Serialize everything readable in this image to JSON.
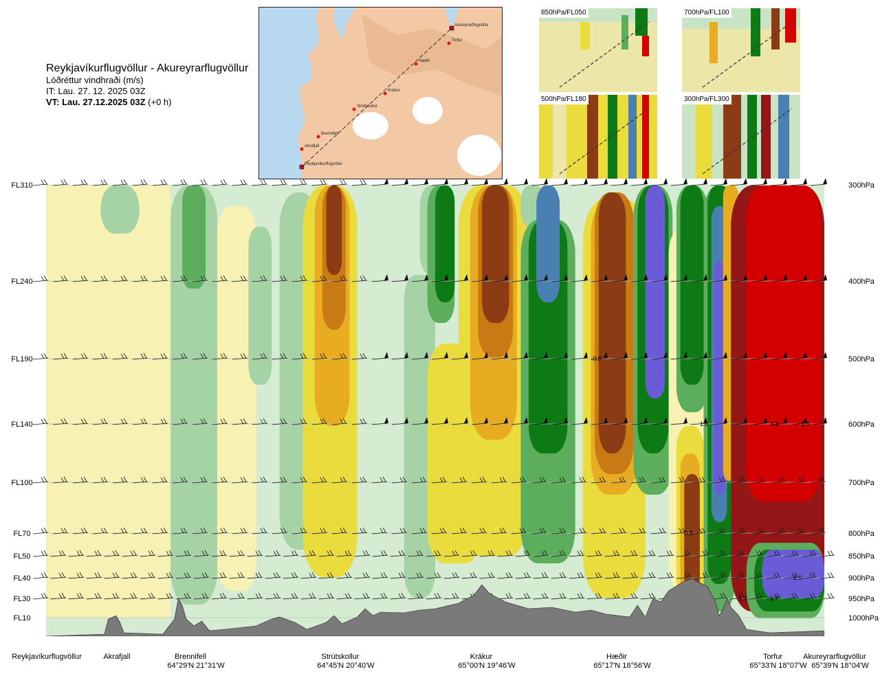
{
  "title": {
    "route": "Reykjavíkurflugvöllur - Akureyrarflugvöllur",
    "variable": "Lóðréttur vindhraði (m/s)",
    "it": "IT: Lau. 27. 12. 2025 03Z",
    "vt_bold": "VT: Lau. 27.12.2025 03Z",
    "vt_rest": " (+0 h)"
  },
  "map_inset": {
    "waypoints": [
      "Akureyrarflugvöllur",
      "Torfur",
      "Hæðir",
      "Krákur",
      "Strútskollur",
      "Brennifell",
      "Akrafjall",
      "Reykjavíkurflugvöllur"
    ]
  },
  "mini_maps": [
    {
      "label": "850hPa/FL050"
    },
    {
      "label": "700hPa/FL100"
    },
    {
      "label": "500hPa/FL180"
    },
    {
      "label": "300hPa/FL300"
    }
  ],
  "chart_data": {
    "type": "heatmap",
    "title": "Lóðréttur vindhraði (m/s)",
    "flight_levels": [
      {
        "fl": "FL310",
        "pressure": "300hPa",
        "hpa": 300
      },
      {
        "fl": "FL240",
        "pressure": "400hPa",
        "hpa": 400
      },
      {
        "fl": "FL190",
        "pressure": "500hPa",
        "hpa": 500
      },
      {
        "fl": "FL140",
        "pressure": "600hPa",
        "hpa": 600
      },
      {
        "fl": "FL100",
        "pressure": "700hPa",
        "hpa": 700
      },
      {
        "fl": "FL70",
        "pressure": "800hPa",
        "hpa": 800
      },
      {
        "fl": "FL50",
        "pressure": "850hPa",
        "hpa": 850
      },
      {
        "fl": "FL40",
        "pressure": "900hPa",
        "hpa": 900
      },
      {
        "fl": "FL30",
        "pressure": "950hPa",
        "hpa": 950
      },
      {
        "fl": "FL10",
        "pressure": "1000hPa",
        "hpa": 1000
      }
    ],
    "stations": [
      {
        "name": "Reykjavíkurflugvöllur",
        "coord": "",
        "dist": 0.0
      },
      {
        "name": "Akrafjall",
        "coord": "",
        "dist": 0.1
      },
      {
        "name": "Brennifell",
        "coord": "64°29'N 21°31'W",
        "dist": 0.19
      },
      {
        "name": "Strútskollur",
        "coord": "64°45'N 20°40'W",
        "dist": 0.38
      },
      {
        "name": "Krákur",
        "coord": "65°00'N 19°46'W",
        "dist": 0.56
      },
      {
        "name": "Hæðir",
        "coord": "65°17'N 18°56'W",
        "dist": 0.74
      },
      {
        "name": "Torfur",
        "coord": "65°33'N 18°07'W",
        "dist": 0.93
      },
      {
        "name": "Akureyrarflugvöllur",
        "coord": "65°39'N 18°04'W",
        "dist": 0.98
      }
    ],
    "value_labels": [
      {
        "text": "-0.6",
        "dist": 0.7,
        "hpa": 500
      },
      {
        "text": "1.6",
        "dist": 0.84,
        "hpa": 600
      },
      {
        "text": "3.3",
        "dist": 0.93,
        "hpa": 600
      },
      {
        "text": "3.5",
        "dist": 0.97,
        "hpa": 600
      },
      {
        "text": "0.8",
        "dist": 0.82,
        "hpa": 800
      },
      {
        "text": "2.0",
        "dist": 0.96,
        "hpa": 900
      },
      {
        "text": "1.4",
        "dist": 0.89,
        "hpa": 950
      },
      {
        "text": "1.7",
        "dist": 0.93,
        "hpa": 950
      }
    ],
    "color_scale": [
      {
        "color": "#6a5cd6"
      },
      {
        "color": "#4a7fb2"
      },
      {
        "color": "#0e7a16"
      },
      {
        "color": "#5cae5c"
      },
      {
        "color": "#a6d3a6"
      },
      {
        "color": "#d6ecd2"
      },
      {
        "color": "#f7f2b4"
      },
      {
        "color": "#e9dc3c"
      },
      {
        "color": "#e8ac22"
      },
      {
        "color": "#c87a14"
      },
      {
        "color": "#8c3c14"
      },
      {
        "color": "#941616"
      },
      {
        "color": "#d40000"
      }
    ],
    "terrain_color": "#7a7a7a"
  }
}
